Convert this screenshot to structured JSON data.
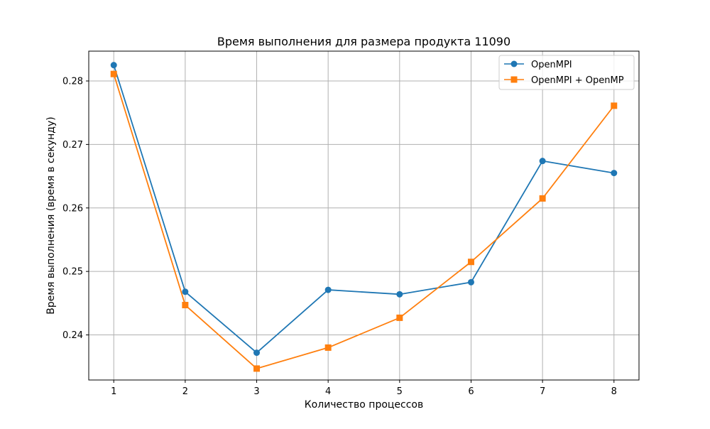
{
  "chart_data": {
    "type": "line",
    "title": "Время выполнения для размера продукта 11090",
    "xlabel": "Количество процессов",
    "ylabel": "Время выполнения (время в секунду)",
    "x": [
      1,
      2,
      3,
      4,
      5,
      6,
      7,
      8
    ],
    "xticks": [
      "1",
      "2",
      "3",
      "4",
      "5",
      "6",
      "7",
      "8"
    ],
    "xlim": [
      0.65,
      8.35
    ],
    "yticks": [
      "0.24",
      "0.25",
      "0.26",
      "0.27",
      "0.28"
    ],
    "ytick_values": [
      0.24,
      0.25,
      0.26,
      0.27,
      0.28
    ],
    "ylim": [
      0.2329,
      0.2847
    ],
    "grid": true,
    "legend_position": "top-right",
    "series": [
      {
        "name": "OpenMPI",
        "color": "#1f77b4",
        "marker": "circle",
        "values": [
          0.2825,
          0.2468,
          0.2372,
          0.2471,
          0.2464,
          0.2483,
          0.2674,
          0.2655
        ]
      },
      {
        "name": "OpenMPI + OpenMP",
        "color": "#ff7f0e",
        "marker": "square",
        "values": [
          0.2811,
          0.2447,
          0.2347,
          0.238,
          0.2427,
          0.2515,
          0.2615,
          0.2761
        ]
      }
    ]
  }
}
